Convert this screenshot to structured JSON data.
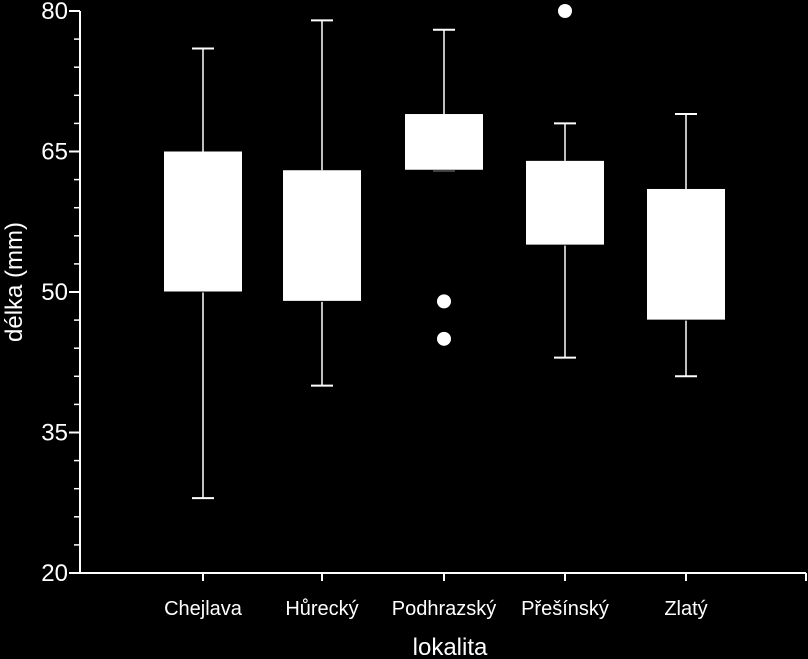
{
  "chart_data": {
    "type": "box",
    "xlabel": "lokalita",
    "ylabel": "délka (mm)",
    "ylim": [
      20,
      80
    ],
    "yticks": [
      20,
      35,
      50,
      65,
      80
    ],
    "yticks_labels": [
      "20",
      "35",
      "50",
      "65",
      "80"
    ],
    "minor_tick_step": 3,
    "categories": [
      "Chejlava",
      "Hůrecký",
      "Podhrazský",
      "Přešínský",
      "Zlatý"
    ],
    "boxes": [
      {
        "category": "Chejlava",
        "whisker_low": 28,
        "q1": 50,
        "median": 50,
        "q3": 65,
        "whisker_high": 76,
        "outliers": []
      },
      {
        "category": "Hůrecký",
        "whisker_low": 40,
        "q1": 49,
        "median": 49,
        "q3": 63,
        "whisker_high": 79,
        "outliers": []
      },
      {
        "category": "Podhrazský",
        "whisker_low": 63,
        "q1": 63,
        "median": 63,
        "q3": 69,
        "whisker_high": 78,
        "outliers": [
          49,
          45
        ]
      },
      {
        "category": "Přešínský",
        "whisker_low": 43,
        "q1": 55,
        "median": 55,
        "q3": 64,
        "whisker_high": 68,
        "outliers": [
          80
        ]
      },
      {
        "category": "Zlatý",
        "whisker_low": 41,
        "q1": 47,
        "median": 47,
        "q3": 61,
        "whisker_high": 69,
        "outliers": []
      }
    ],
    "colors": {
      "background": "#000000",
      "foreground": "#ffffff"
    }
  }
}
